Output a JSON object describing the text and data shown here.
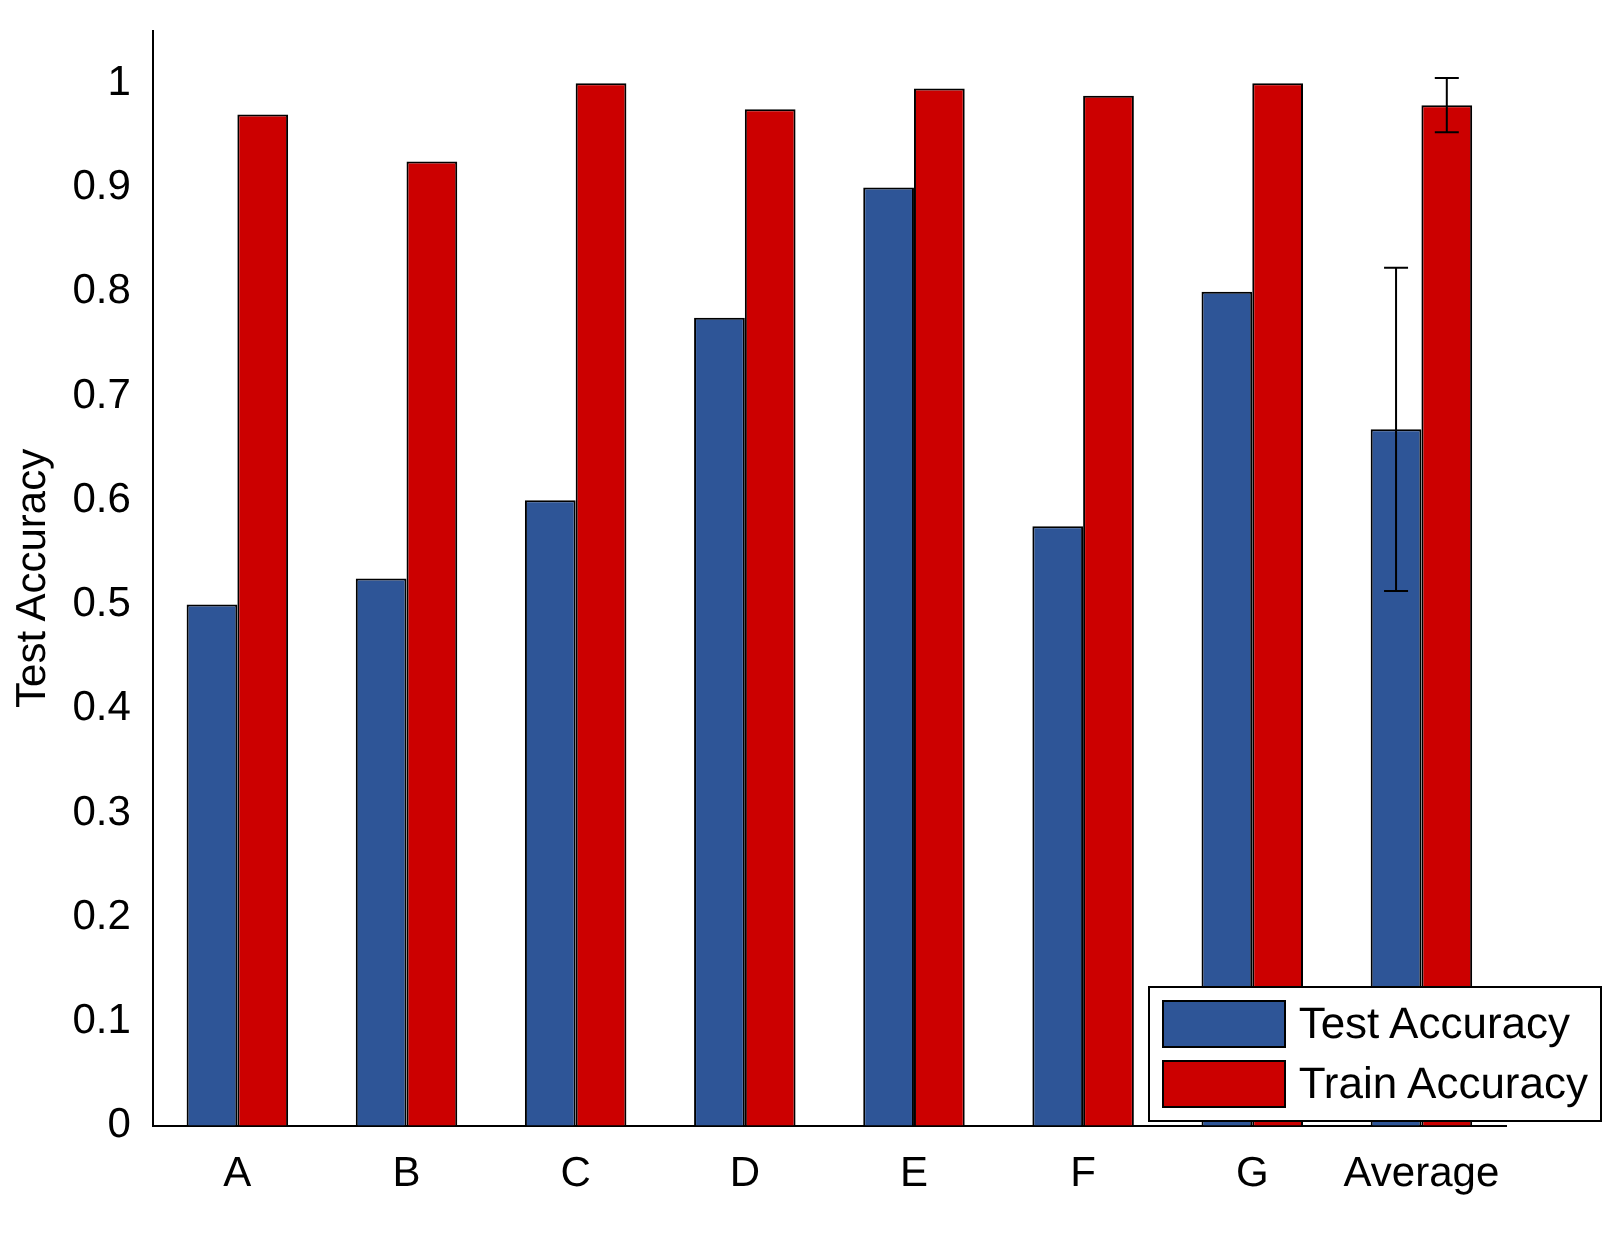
{
  "chart_data": {
    "type": "bar",
    "ylabel": "Test Accuracy",
    "categories": [
      "A",
      "B",
      "C",
      "D",
      "E",
      "F",
      "G",
      "Average"
    ],
    "series": [
      {
        "name": "Test Accuracy",
        "color": "#2e5597",
        "values": [
          0.5,
          0.525,
          0.6,
          0.775,
          0.9,
          0.575,
          0.8,
          0.668
        ],
        "errors": [
          null,
          null,
          null,
          null,
          null,
          null,
          null,
          0.155
        ]
      },
      {
        "name": "Train Accuracy",
        "color": "#cc0000",
        "values": [
          0.97,
          0.925,
          1.0,
          0.975,
          0.995,
          0.988,
          1.0,
          0.979
        ],
        "errors": [
          null,
          null,
          null,
          null,
          null,
          null,
          null,
          0.026
        ]
      }
    ],
    "ylim": [
      0,
      1.05
    ],
    "yticks": [
      0,
      0.1,
      0.2,
      0.3,
      0.4,
      0.5,
      0.6,
      0.7,
      0.8,
      0.9,
      1
    ],
    "grid": false,
    "legend": "bottom right"
  }
}
